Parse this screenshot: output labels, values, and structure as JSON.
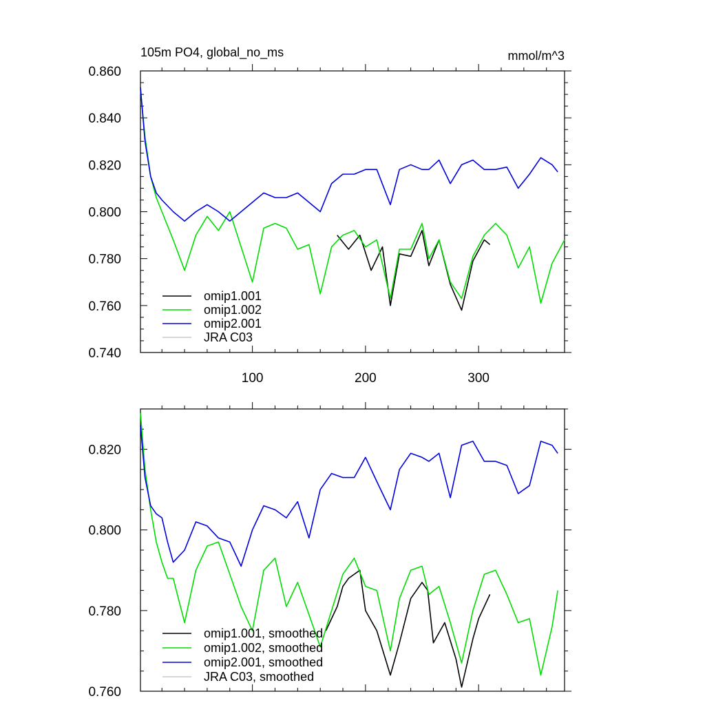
{
  "chart_data": [
    {
      "type": "line",
      "title": "105m PO4, global_no_ms",
      "units": "mmol/m^3",
      "xlim": [
        1,
        376
      ],
      "ylim": [
        0.74,
        0.86
      ],
      "x_tick_labels": [
        "100",
        "200",
        "300"
      ],
      "y_tick_labels": [
        "0.740",
        "0.760",
        "0.780",
        "0.800",
        "0.820",
        "0.840",
        "0.860"
      ],
      "legend": [
        "omip1.001",
        "omip1.002",
        "omip2.001",
        "JRA C03"
      ],
      "legend_position": "bottom-left",
      "series": [
        {
          "name": "omip1.001",
          "color": "#000000",
          "x": [
            175,
            185,
            195,
            205,
            215,
            222,
            230,
            240,
            250,
            256,
            265,
            275,
            285,
            295,
            305,
            310
          ],
          "y": [
            0.79,
            0.784,
            0.79,
            0.775,
            0.785,
            0.76,
            0.782,
            0.781,
            0.792,
            0.777,
            0.788,
            0.769,
            0.758,
            0.779,
            0.788,
            0.786
          ]
        },
        {
          "name": "omip1.002",
          "color": "#00dd00",
          "x": [
            1,
            5,
            10,
            15,
            20,
            30,
            40,
            50,
            60,
            70,
            80,
            90,
            100,
            110,
            120,
            130,
            140,
            150,
            160,
            170,
            180,
            190,
            200,
            210,
            222,
            230,
            240,
            250,
            256,
            265,
            275,
            285,
            295,
            305,
            315,
            325,
            335,
            345,
            355,
            365,
            376
          ],
          "y": [
            0.852,
            0.832,
            0.815,
            0.806,
            0.8,
            0.788,
            0.775,
            0.79,
            0.798,
            0.792,
            0.8,
            0.785,
            0.77,
            0.793,
            0.795,
            0.793,
            0.784,
            0.786,
            0.765,
            0.785,
            0.79,
            0.792,
            0.785,
            0.788,
            0.763,
            0.784,
            0.784,
            0.795,
            0.78,
            0.788,
            0.77,
            0.763,
            0.781,
            0.79,
            0.795,
            0.79,
            0.776,
            0.785,
            0.761,
            0.778,
            0.788
          ]
        },
        {
          "name": "omip2.001",
          "color": "#0000dd",
          "x": [
            1,
            5,
            10,
            15,
            20,
            30,
            40,
            50,
            60,
            70,
            80,
            90,
            100,
            110,
            120,
            130,
            140,
            150,
            160,
            170,
            180,
            190,
            200,
            210,
            222,
            230,
            240,
            250,
            256,
            265,
            275,
            285,
            295,
            305,
            315,
            325,
            335,
            345,
            355,
            365,
            370
          ],
          "y": [
            0.853,
            0.83,
            0.815,
            0.808,
            0.805,
            0.8,
            0.796,
            0.8,
            0.803,
            0.8,
            0.796,
            0.8,
            0.804,
            0.808,
            0.806,
            0.806,
            0.808,
            0.804,
            0.8,
            0.812,
            0.816,
            0.816,
            0.818,
            0.818,
            0.803,
            0.818,
            0.82,
            0.818,
            0.818,
            0.822,
            0.812,
            0.82,
            0.822,
            0.818,
            0.818,
            0.819,
            0.81,
            0.816,
            0.823,
            0.82,
            0.817
          ]
        },
        {
          "name": "JRA C03",
          "color": "#c8c8c8",
          "x": [],
          "y": []
        }
      ]
    },
    {
      "type": "line",
      "xlim": [
        1,
        376
      ],
      "ylim": [
        0.76,
        0.83
      ],
      "y_tick_labels": [
        "0.760",
        "0.780",
        "0.800",
        "0.820"
      ],
      "legend": [
        "omip1.001, smoothed",
        "omip1.002, smoothed",
        "omip2.001, smoothed",
        "JRA C03, smoothed"
      ],
      "legend_position": "bottom-left",
      "series": [
        {
          "name": "omip1.001, smoothed",
          "color": "#000000",
          "x": [
            165,
            175,
            180,
            185,
            190,
            195,
            200,
            210,
            222,
            230,
            240,
            250,
            255,
            260,
            270,
            280,
            285,
            295,
            300,
            310
          ],
          "y": [
            0.775,
            0.781,
            0.786,
            0.788,
            0.789,
            0.79,
            0.78,
            0.775,
            0.764,
            0.772,
            0.783,
            0.787,
            0.785,
            0.772,
            0.777,
            0.768,
            0.761,
            0.773,
            0.778,
            0.784
          ]
        },
        {
          "name": "omip1.002, smoothed",
          "color": "#00dd00",
          "x": [
            1,
            5,
            10,
            15,
            20,
            25,
            30,
            40,
            50,
            60,
            70,
            80,
            90,
            100,
            110,
            120,
            130,
            140,
            150,
            160,
            170,
            180,
            190,
            200,
            210,
            222,
            230,
            240,
            250,
            256,
            265,
            275,
            285,
            295,
            305,
            315,
            325,
            335,
            345,
            355,
            365,
            370
          ],
          "y": [
            0.829,
            0.815,
            0.805,
            0.797,
            0.792,
            0.788,
            0.788,
            0.777,
            0.79,
            0.796,
            0.797,
            0.789,
            0.781,
            0.775,
            0.79,
            0.793,
            0.781,
            0.787,
            0.779,
            0.771,
            0.78,
            0.789,
            0.793,
            0.786,
            0.785,
            0.77,
            0.783,
            0.79,
            0.791,
            0.784,
            0.786,
            0.777,
            0.767,
            0.78,
            0.789,
            0.79,
            0.784,
            0.777,
            0.778,
            0.764,
            0.776,
            0.785
          ]
        },
        {
          "name": "omip2.001, smoothed",
          "color": "#0000dd",
          "x": [
            1,
            5,
            10,
            15,
            20,
            25,
            30,
            40,
            50,
            60,
            70,
            80,
            90,
            100,
            110,
            120,
            130,
            140,
            150,
            160,
            170,
            180,
            190,
            200,
            210,
            222,
            230,
            240,
            250,
            256,
            265,
            275,
            285,
            295,
            305,
            315,
            325,
            335,
            345,
            355,
            365,
            370
          ],
          "y": [
            0.826,
            0.813,
            0.806,
            0.804,
            0.803,
            0.797,
            0.792,
            0.795,
            0.802,
            0.801,
            0.798,
            0.797,
            0.791,
            0.8,
            0.806,
            0.805,
            0.803,
            0.807,
            0.798,
            0.81,
            0.814,
            0.813,
            0.813,
            0.818,
            0.812,
            0.805,
            0.815,
            0.819,
            0.818,
            0.817,
            0.819,
            0.808,
            0.821,
            0.822,
            0.817,
            0.817,
            0.816,
            0.809,
            0.811,
            0.822,
            0.821,
            0.819
          ]
        },
        {
          "name": "JRA C03, smoothed",
          "color": "#c8c8c8",
          "x": [],
          "y": []
        }
      ]
    }
  ]
}
